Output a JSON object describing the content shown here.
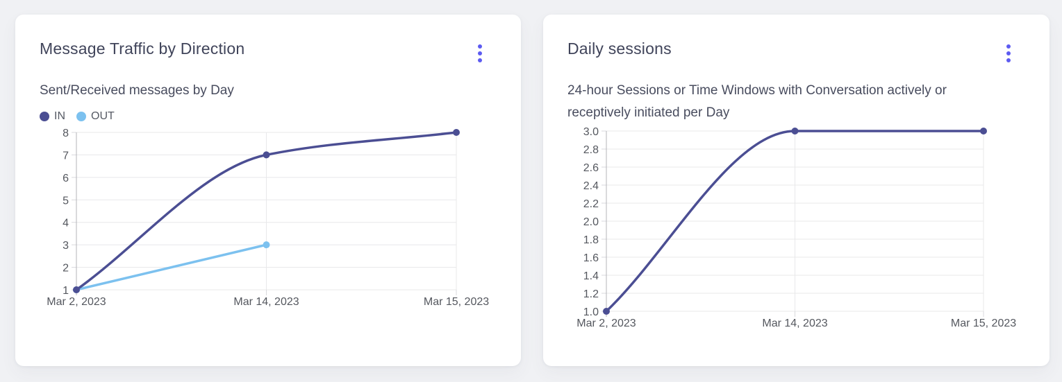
{
  "theme": {
    "accent": "#5d5bf1",
    "page_bg": "#f0f1f4",
    "card_bg": "#ffffff",
    "grid_color": "#e8e8ea",
    "tick_color": "#d9d9dc",
    "axis_color": "#b4b4ba",
    "title_color": "#40445a",
    "label_color": "#54575e"
  },
  "cards": [
    {
      "title": "Message Traffic by Direction",
      "subtitle_lines": [
        "Sent/Received messages by Day"
      ],
      "menu_icon": "kebab-menu-icon"
    },
    {
      "title": "Daily sessions",
      "subtitle_lines": [
        "24-hour Sessions or Time Windows with Conversation actively or",
        "receptively initiated per Day"
      ],
      "menu_icon": "kebab-menu-icon"
    }
  ],
  "chart_data": [
    {
      "type": "line",
      "title": "Message Traffic by Direction",
      "subtitle": "Sent/Received messages by Day",
      "categories": [
        "Mar 2, 2023",
        "Mar 14, 2023",
        "Mar 15, 2023"
      ],
      "series": [
        {
          "name": "IN",
          "color": "#4b4e93",
          "values": [
            1,
            7,
            8
          ]
        },
        {
          "name": "OUT",
          "color": "#7cc1ef",
          "values": [
            1,
            3,
            null
          ]
        }
      ],
      "ylim": [
        1,
        8
      ],
      "y_tick_labels": [
        "8",
        "7",
        "6",
        "5",
        "4",
        "3",
        "2",
        "1"
      ],
      "xlabel": "",
      "ylabel": "",
      "grid": true,
      "legend_position": "top-left",
      "line_style": "smooth-monotone"
    },
    {
      "type": "line",
      "title": "Daily sessions",
      "subtitle": "24-hour Sessions or Time Windows with Conversation actively or receptively initiated per Day",
      "categories": [
        "Mar 2, 2023",
        "Mar 14, 2023",
        "Mar 15, 2023"
      ],
      "series": [
        {
          "name": "Daily sessions",
          "color": "#4b4e93",
          "values": [
            1.0,
            3.0,
            3.0
          ]
        }
      ],
      "ylim": [
        1.0,
        3.0
      ],
      "y_tick_labels": [
        "3.0",
        "2.8",
        "2.6",
        "2.4",
        "2.2",
        "2.0",
        "1.8",
        "1.6",
        "1.4",
        "1.2",
        "1.0"
      ],
      "xlabel": "",
      "ylabel": "",
      "grid": true,
      "legend_position": "none",
      "line_style": "smooth-monotone"
    }
  ]
}
